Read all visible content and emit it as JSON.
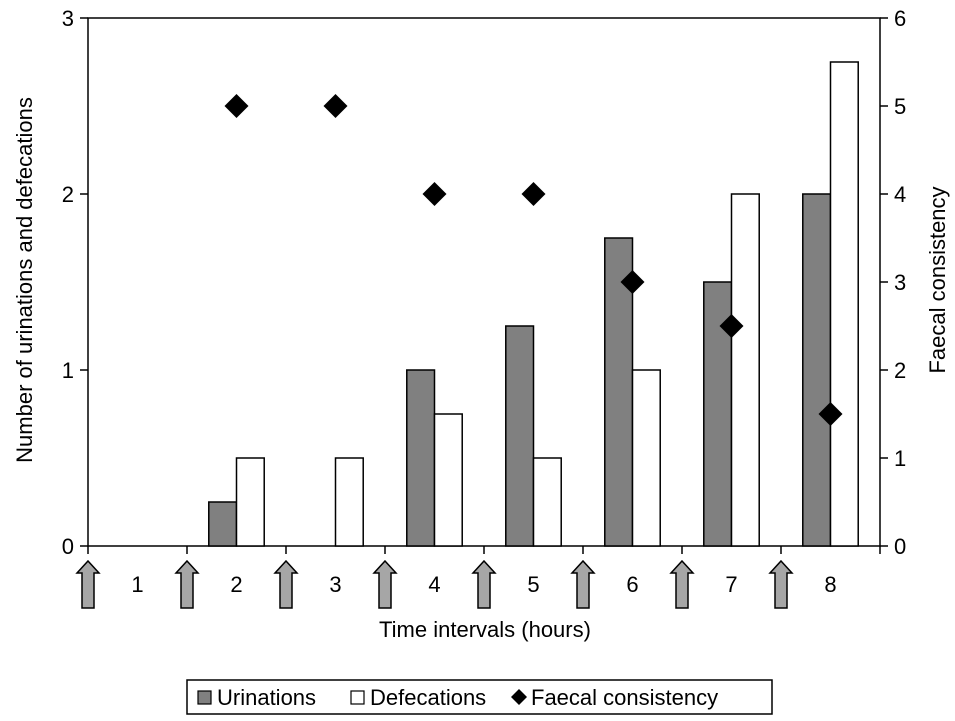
{
  "chart_data": {
    "type": "bar",
    "categories": [
      "1",
      "2",
      "3",
      "4",
      "5",
      "6",
      "7",
      "8"
    ],
    "xlabel": "Time intervals (hours)",
    "ylabel": "Number of urinations and defecations",
    "y2label": "Faecal consistency",
    "ylim": [
      0,
      3
    ],
    "y2lim": [
      0,
      6
    ],
    "yticks": [
      "0",
      "1",
      "2",
      "3"
    ],
    "y2ticks": [
      "0",
      "1",
      "2",
      "3",
      "4",
      "5",
      "6"
    ],
    "series": [
      {
        "name": "Urinations",
        "type": "bar",
        "axis": "left",
        "color": "#808080",
        "values": [
          0,
          0.25,
          0,
          1,
          1.25,
          1.75,
          1.5,
          2
        ]
      },
      {
        "name": "Defecations",
        "type": "bar",
        "axis": "left",
        "color": "#ffffff",
        "values": [
          0,
          0.5,
          0.5,
          0.75,
          0.5,
          1,
          2,
          2.75
        ]
      },
      {
        "name": "Faecal consistency",
        "type": "scatter",
        "axis": "right",
        "marker": "diamond",
        "color": "#000000",
        "values": [
          null,
          5,
          5,
          4,
          4,
          3,
          2.5,
          1.5
        ]
      }
    ],
    "arrows": {
      "count": 8,
      "color": "#a6a6a6"
    },
    "legend": {
      "position": "bottom"
    }
  }
}
